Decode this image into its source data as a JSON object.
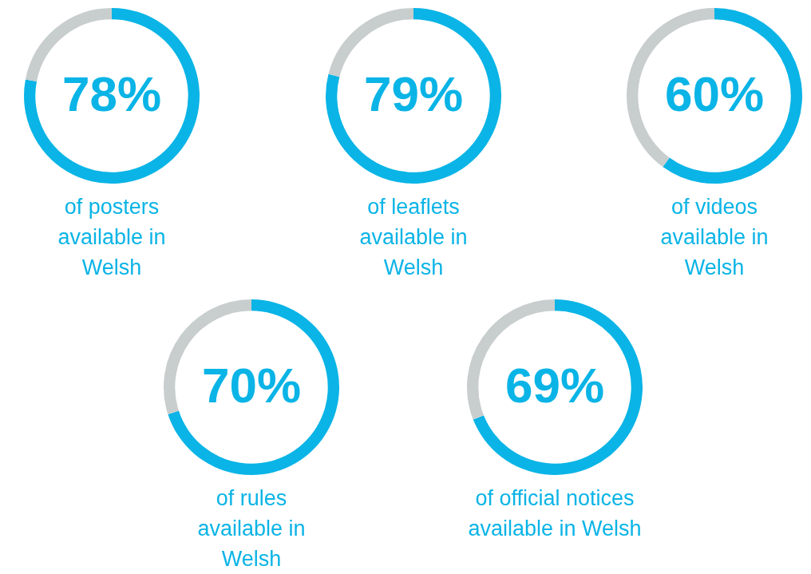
{
  "chart_data": [
    {
      "type": "donut",
      "title": "of posters available in Welsh",
      "categories": [
        null,
        null
      ],
      "values": [
        78,
        22
      ],
      "colors": [
        "#0ab4e6",
        "#c8cdcd"
      ],
      "value_labels": [
        "78%",
        null
      ]
    },
    {
      "type": "donut",
      "title": "of leaflets available in Welsh",
      "categories": [
        null,
        null
      ],
      "values": [
        79,
        21
      ],
      "colors": [
        "#0ab4e6",
        "#c8cdcd"
      ],
      "value_labels": [
        "79%",
        null
      ]
    },
    {
      "type": "donut",
      "title": "of videos available in Welsh",
      "categories": [
        null,
        null
      ],
      "values": [
        60,
        40
      ],
      "colors": [
        "#0ab4e6",
        "#c8cdcd"
      ],
      "value_labels": [
        "60%",
        null
      ]
    },
    {
      "type": "donut",
      "title": "of rules available in Welsh",
      "categories": [
        null,
        null
      ],
      "values": [
        70,
        30
      ],
      "colors": [
        "#0ab4e6",
        "#c8cdcd"
      ],
      "value_labels": [
        "70%",
        null
      ]
    },
    {
      "type": "donut",
      "title": "of official notices available in Welsh",
      "categories": [
        null,
        null
      ],
      "values": [
        69,
        31
      ],
      "colors": [
        "#0ab4e6",
        "#c8cdcd"
      ],
      "value_labels": [
        "69%",
        null
      ]
    }
  ]
}
